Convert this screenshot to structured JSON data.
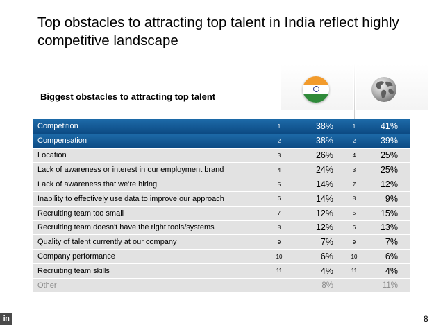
{
  "slide": {
    "title": "Top obstacles to attracting top talent in India reflect highly competitive landscape",
    "page_number": "8"
  },
  "chart_data": {
    "type": "table",
    "title": "Biggest obstacles to attracting top talent",
    "columns": [
      "India",
      "Global"
    ],
    "rows": [
      {
        "label": "Competition",
        "india_rank": "1",
        "india_pct": "38%",
        "global_rank": "1",
        "global_pct": "41%",
        "highlight": true
      },
      {
        "label": "Compensation",
        "india_rank": "2",
        "india_pct": "38%",
        "global_rank": "2",
        "global_pct": "39%",
        "highlight": true
      },
      {
        "label": "Location",
        "india_rank": "3",
        "india_pct": "26%",
        "global_rank": "4",
        "global_pct": "25%",
        "highlight": false
      },
      {
        "label": "Lack of awareness or interest in our employment brand",
        "india_rank": "4",
        "india_pct": "24%",
        "global_rank": "3",
        "global_pct": "25%",
        "highlight": false
      },
      {
        "label": "Lack of awareness that we're hiring",
        "india_rank": "5",
        "india_pct": "14%",
        "global_rank": "7",
        "global_pct": "12%",
        "highlight": false
      },
      {
        "label": "Inability to effectively use data to improve our approach",
        "india_rank": "6",
        "india_pct": "14%",
        "global_rank": "8",
        "global_pct": "9%",
        "highlight": false
      },
      {
        "label": "Recruiting team too small",
        "india_rank": "7",
        "india_pct": "12%",
        "global_rank": "5",
        "global_pct": "15%",
        "highlight": false
      },
      {
        "label": "Recruiting team doesn't have the right tools/systems",
        "india_rank": "8",
        "india_pct": "12%",
        "global_rank": "6",
        "global_pct": "13%",
        "highlight": false
      },
      {
        "label": "Quality of talent currently at our company",
        "india_rank": "9",
        "india_pct": "7%",
        "global_rank": "9",
        "global_pct": "7%",
        "highlight": false
      },
      {
        "label": "Company performance",
        "india_rank": "10",
        "india_pct": "6%",
        "global_rank": "10",
        "global_pct": "6%",
        "highlight": false
      },
      {
        "label": "Recruiting team skills",
        "india_rank": "11",
        "india_pct": "4%",
        "global_rank": "11",
        "global_pct": "4%",
        "highlight": false
      },
      {
        "label": "Other",
        "india_rank": "",
        "india_pct": "8%",
        "global_rank": "",
        "global_pct": "11%",
        "highlight": false,
        "muted": true
      }
    ]
  },
  "icons": {
    "india_flag": "india-flag-icon",
    "globe": "globe-icon",
    "linkedin": "linkedin-logo"
  },
  "colors": {
    "highlight_row": "#0c4a83",
    "row_bg": "#e2e2e2",
    "muted_text": "#8a8a8a"
  }
}
